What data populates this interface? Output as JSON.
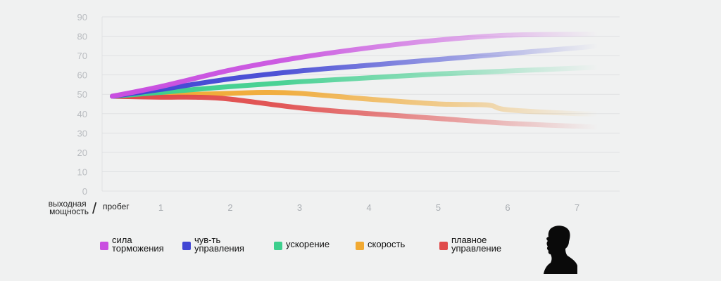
{
  "chart_data": {
    "type": "line",
    "x_label_left": "выходная\nмощность",
    "x_label_right": "пробег",
    "separator": "/",
    "x_ticks": [
      "1",
      "2",
      "3",
      "4",
      "5",
      "6",
      "7"
    ],
    "y_ticks": [
      "0",
      "10",
      "20",
      "30",
      "40",
      "50",
      "60",
      "70",
      "80",
      "90"
    ],
    "ylim": [
      0,
      90
    ],
    "xlim": [
      0.3,
      7.6
    ],
    "grid": true,
    "legend_position": "bottom",
    "series": [
      {
        "name": "сила\nторможения",
        "color": "#c94fe0",
        "x": [
          0.3,
          1,
          2,
          3,
          4,
          5,
          6,
          7,
          7.3
        ],
        "y": [
          49,
          54,
          62.5,
          69,
          74,
          78,
          80.5,
          81,
          81
        ]
      },
      {
        "name": "чув-ть\nуправления",
        "color": "#4146d4",
        "x": [
          0.3,
          1,
          2,
          3,
          4,
          5,
          6,
          7,
          7.3
        ],
        "y": [
          49,
          52.5,
          58,
          62,
          65,
          68,
          71,
          74,
          75
        ]
      },
      {
        "name": "ускорение",
        "color": "#3dcf8d",
        "x": [
          0.3,
          1,
          2,
          3,
          4,
          5,
          6,
          7,
          7.3
        ],
        "y": [
          49,
          51,
          54,
          56.5,
          58.5,
          60.5,
          62,
          63.5,
          64
        ]
      },
      {
        "name": "скорость",
        "color": "#f1a932",
        "x": [
          0.3,
          1,
          2,
          2.5,
          3,
          4,
          5,
          5.7,
          6,
          7,
          7.3
        ],
        "y": [
          49,
          49.5,
          50.5,
          51,
          50.5,
          47.5,
          45,
          44.5,
          42,
          40,
          40
        ]
      },
      {
        "name": "плавное\nуправление",
        "color": "#e04a4a",
        "x": [
          0.3,
          1,
          1.5,
          2,
          3,
          4,
          5,
          6,
          7,
          7.3
        ],
        "y": [
          49,
          48.5,
          48.5,
          47.5,
          43,
          40,
          37.5,
          35,
          33.5,
          33
        ]
      }
    ]
  }
}
